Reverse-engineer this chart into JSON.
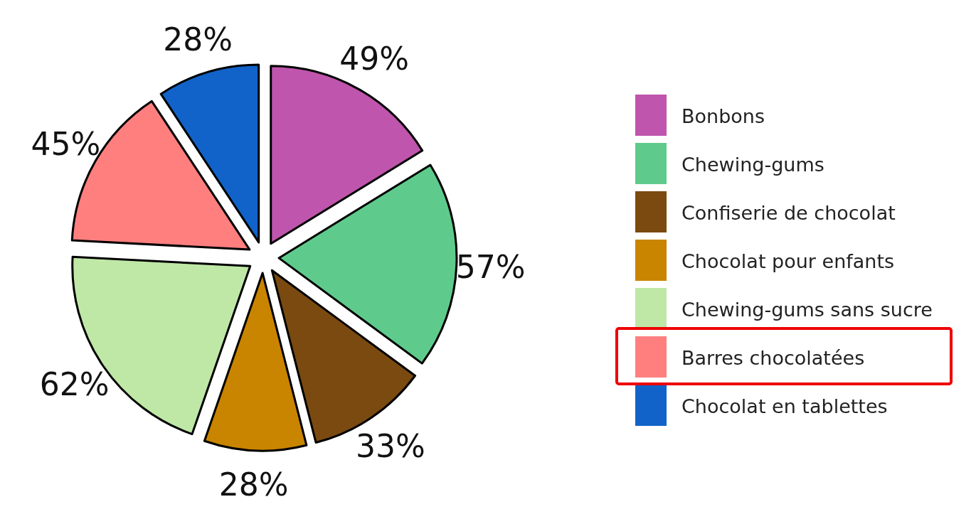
{
  "chart_data": {
    "type": "pie",
    "categories": [
      "Bonbons",
      "Chewing-gums",
      "Confiserie de chocolat",
      "Chocolat pour enfants",
      "Chewing-gums sans sucre",
      "Barres chocolatées",
      "Chocolat en tablettes"
    ],
    "values": [
      49,
      57,
      33,
      28,
      62,
      45,
      28
    ],
    "colors": [
      "#bf55ac",
      "#5ecb8c",
      "#7a4a10",
      "#c98400",
      "#bfe8a6",
      "#ff7f7f",
      "#1163c9"
    ],
    "value_labels": [
      "49%",
      "57%",
      "33%",
      "28%",
      "62%",
      "45%",
      "28%"
    ],
    "legend": "right"
  }
}
